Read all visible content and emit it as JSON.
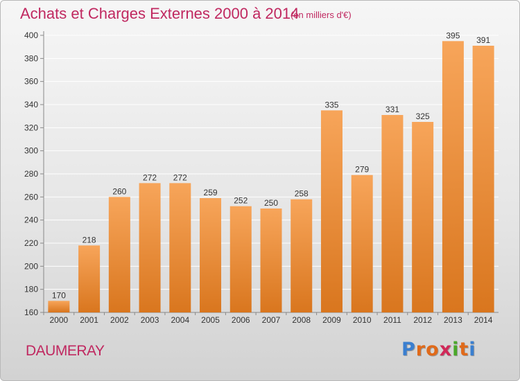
{
  "header": {
    "title": "Achats et Charges Externes 2000 à 2014",
    "subtitle": "(en milliers d'€)"
  },
  "footer": {
    "place": "DAUMERAY",
    "brand": "Proxiti",
    "brand_colors": [
      "#3a7fd0",
      "#e06a1a",
      "#e06a1a",
      "#d02858",
      "#4aa82a",
      "#e06a1a",
      "#3a7fd0"
    ]
  },
  "colors": {
    "bar_top": "#f7a55a",
    "bar_bottom": "#d9761e",
    "grid": "#ffffff",
    "axis_text": "#333333"
  },
  "chart_data": {
    "type": "bar",
    "categories": [
      "2000",
      "2001",
      "2002",
      "2003",
      "2004",
      "2005",
      "2006",
      "2007",
      "2008",
      "2009",
      "2010",
      "2011",
      "2012",
      "2013",
      "2014"
    ],
    "values": [
      170,
      218,
      260,
      272,
      272,
      259,
      252,
      250,
      258,
      335,
      279,
      331,
      325,
      395,
      391
    ],
    "data_labels": [
      "170",
      "218",
      "260",
      "272",
      "272",
      "259",
      "252",
      "250",
      "258",
      "335",
      "279",
      "331",
      "325",
      "395",
      "391"
    ],
    "y_ticks": [
      160,
      180,
      200,
      220,
      240,
      260,
      280,
      300,
      320,
      340,
      360,
      380,
      400
    ],
    "ylim": [
      160,
      400
    ],
    "grid": true,
    "legend": "none"
  }
}
